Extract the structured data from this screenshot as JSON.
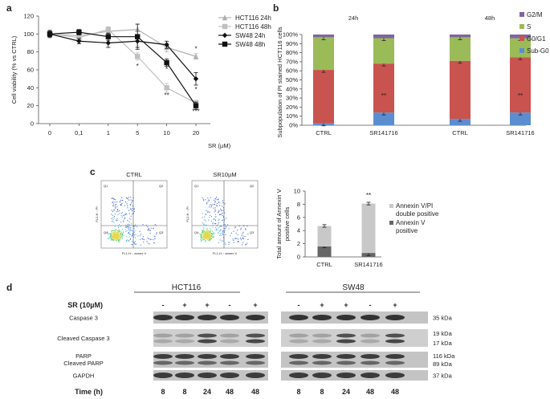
{
  "panels": {
    "a": "a",
    "b": "b",
    "c": "c",
    "d": "d"
  },
  "chart_data": [
    {
      "id": "a",
      "type": "line",
      "x": [
        "0",
        "0,1",
        "1",
        "5",
        "10",
        "20"
      ],
      "xlabel": "SR (µM)",
      "ylabel": "Cell viability (% vs CTRL)",
      "ylim": [
        0,
        120
      ],
      "yticks": [
        0,
        20,
        40,
        60,
        80,
        100,
        120
      ],
      "legend_position": "top-right",
      "series": [
        {
          "name": "HCT116 24h",
          "color": "#b0b0b0",
          "marker": "triangle",
          "values": [
            100,
            98,
            103,
            105,
            85,
            75
          ],
          "err": [
            4,
            3,
            3,
            6,
            5,
            3
          ]
        },
        {
          "name": "HCT116 48h",
          "color": "#c0c0c0",
          "marker": "square",
          "values": [
            100,
            96,
            105,
            75,
            40,
            23
          ],
          "err": [
            3,
            3,
            3,
            4,
            5,
            3
          ]
        },
        {
          "name": "SW48 24h",
          "color": "#111111",
          "marker": "diamond",
          "values": [
            100,
            92,
            90,
            92,
            88,
            50
          ],
          "err": [
            4,
            3,
            5,
            7,
            4,
            7
          ]
        },
        {
          "name": "SW48 48h",
          "color": "#111111",
          "marker": "square",
          "values": [
            100,
            102,
            97,
            97,
            68,
            20
          ],
          "err": [
            3,
            3,
            4,
            14,
            4,
            4
          ]
        }
      ],
      "annotations": [
        {
          "x": "5",
          "y": 62,
          "text": "*"
        },
        {
          "x": "10",
          "y": 58,
          "text": "*"
        },
        {
          "x": "10",
          "y": 29,
          "text": "**"
        },
        {
          "x": "20",
          "y": 81,
          "text": "*"
        },
        {
          "x": "20",
          "y": 36,
          "text": "*"
        },
        {
          "x": "20",
          "y": 11,
          "text": "***"
        }
      ]
    },
    {
      "id": "b",
      "type": "bar",
      "stacked": true,
      "percent": true,
      "categories": [
        "CTRL",
        "SR141716",
        "CTRL",
        "SR141716"
      ],
      "groups": [
        {
          "label": "24h",
          "members": [
            0,
            1
          ]
        },
        {
          "label": "48h",
          "members": [
            2,
            3
          ]
        }
      ],
      "ylabel": "Subpopulation of PI stained HCT116 cells",
      "ylim": [
        0,
        100
      ],
      "yticks": [
        "0%",
        "10%",
        "20%",
        "30%",
        "40%",
        "50%",
        "60%",
        "70%",
        "80%",
        "90%",
        "100%"
      ],
      "series": [
        {
          "name": "Sub-G0",
          "color": "#5b8ed0",
          "values": [
            2,
            14,
            7,
            14
          ]
        },
        {
          "name": "G0/G1",
          "color": "#c9534f",
          "values": [
            59,
            54,
            64,
            61
          ]
        },
        {
          "name": "S",
          "color": "#9bbb59",
          "values": [
            36,
            28,
            26,
            21
          ]
        },
        {
          "name": "G2/M",
          "color": "#8064a2",
          "values": [
            3,
            4,
            3,
            4
          ]
        }
      ],
      "annotations": [
        {
          "category_index": 1,
          "text": "**"
        },
        {
          "category_index": 3,
          "text": "**"
        }
      ]
    },
    {
      "id": "c",
      "type": "bar",
      "stacked": true,
      "categories": [
        "CTRL",
        "SR141716"
      ],
      "ylabel": "Total amount of Annexin V positive cells",
      "ylim": [
        0,
        10
      ],
      "yticks": [
        0,
        2,
        4,
        6,
        8,
        10
      ],
      "series": [
        {
          "name": "Annexin V positive",
          "color": "#666666",
          "values": [
            1.6,
            0.6
          ],
          "err": [
            0.2,
            0.4
          ]
        },
        {
          "name": "Annexin V/PI double positive",
          "color": "#c8c8c8",
          "values": [
            3.1,
            7.5
          ],
          "err": [
            0.2,
            0.2
          ]
        }
      ],
      "annotations": [
        {
          "category_index": 1,
          "text": "**"
        }
      ]
    }
  ],
  "flow": {
    "plots": [
      {
        "title": "CTRL",
        "quads": [
          "Q1",
          "Q2",
          "Q3",
          "Q4"
        ],
        "xlabel": "FL1-H :: annex V",
        "ylabel": "FL2-H :: PI"
      },
      {
        "title": "SR10µM",
        "quads": [
          "Q1",
          "Q2",
          "Q3",
          "Q4"
        ],
        "xlabel": "FL1-H :: annex V",
        "ylabel": "FL2-H :: PI"
      }
    ]
  },
  "western": {
    "treatment_label": "SR (10µM)",
    "time_label": "Time (h)",
    "blots": [
      {
        "cell_line": "HCT116",
        "sr": [
          "-",
          "+",
          "+",
          "-",
          "+"
        ],
        "time": [
          "8",
          "8",
          "24",
          "48",
          "48"
        ]
      },
      {
        "cell_line": "SW48",
        "sr": [
          "-",
          "+",
          "+",
          "-",
          "+"
        ],
        "time": [
          "8",
          "8",
          "24",
          "48",
          "48"
        ]
      }
    ],
    "rows": [
      {
        "label": "Caspase 3",
        "kda": [
          "35 kDa"
        ]
      },
      {
        "label": "Cleaved Caspase 3",
        "kda": [
          "19 kDa",
          "17 kDa"
        ]
      },
      {
        "label": "PARP\nCleaved PARP",
        "label_lines": [
          "PARP",
          "Cleaved PARP"
        ],
        "kda": [
          "116 kDa",
          "89 kDa"
        ]
      },
      {
        "label": "GAPDH",
        "kda": [
          "37 kDa"
        ]
      }
    ]
  }
}
